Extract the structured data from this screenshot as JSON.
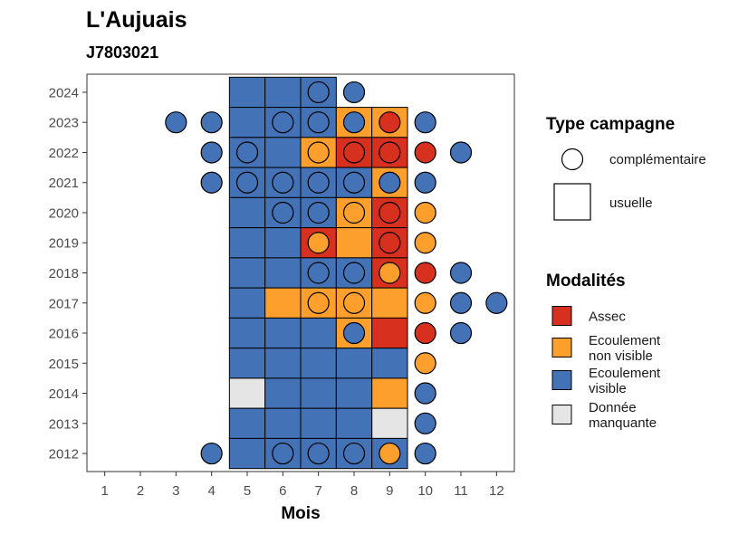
{
  "chart_data": {
    "type": "heatmap",
    "title": "L'Aujuais",
    "subtitle": "J7803021",
    "xlabel": "Mois",
    "ylabel": "",
    "x": [
      1,
      2,
      3,
      4,
      5,
      6,
      7,
      8,
      9,
      10,
      11,
      12
    ],
    "y": [
      2012,
      2013,
      2014,
      2015,
      2016,
      2017,
      2018,
      2019,
      2020,
      2021,
      2022,
      2023,
      2024
    ],
    "xlim": [
      0.5,
      12.5
    ],
    "ylim": [
      2011.4,
      2024.6
    ],
    "grid": false,
    "colors": {
      "Assec": "#d7301f",
      "Ecoulement non visible": "#fd9f2c",
      "Ecoulement visible": "#4372b6",
      "Donnée manquante": "#e5e5e5"
    },
    "legend_type": {
      "title": "Type campagne",
      "items": [
        {
          "key": "complementaire",
          "label": "complémentaire",
          "shape": "circle"
        },
        {
          "key": "usuelle",
          "label": "usuelle",
          "shape": "square"
        }
      ]
    },
    "legend_mod": {
      "title": "Modalités",
      "items": [
        {
          "key": "Assec",
          "label": "Assec",
          "label_lines": [
            "Assec"
          ]
        },
        {
          "key": "Ecoulement non visible",
          "label": "Ecoulement non visible",
          "label_lines": [
            "Ecoulement",
            "non visible"
          ]
        },
        {
          "key": "Ecoulement visible",
          "label": "Ecoulement visible",
          "label_lines": [
            "Ecoulement",
            "visible"
          ]
        },
        {
          "key": "Donnée manquante",
          "label": "Donnée manquante",
          "label_lines": [
            "Donnée",
            "manquante"
          ]
        }
      ]
    },
    "usuelle": [
      {
        "year": 2024,
        "month": 5,
        "m": "Ecoulement visible"
      },
      {
        "year": 2024,
        "month": 6,
        "m": "Ecoulement visible"
      },
      {
        "year": 2024,
        "month": 7,
        "m": "Ecoulement visible"
      },
      {
        "year": 2023,
        "month": 5,
        "m": "Ecoulement visible"
      },
      {
        "year": 2023,
        "month": 6,
        "m": "Ecoulement visible"
      },
      {
        "year": 2023,
        "month": 7,
        "m": "Ecoulement visible"
      },
      {
        "year": 2023,
        "month": 8,
        "m": "Ecoulement non visible"
      },
      {
        "year": 2023,
        "month": 9,
        "m": "Ecoulement non visible"
      },
      {
        "year": 2022,
        "month": 5,
        "m": "Ecoulement visible"
      },
      {
        "year": 2022,
        "month": 6,
        "m": "Ecoulement visible"
      },
      {
        "year": 2022,
        "month": 7,
        "m": "Ecoulement non visible"
      },
      {
        "year": 2022,
        "month": 8,
        "m": "Assec"
      },
      {
        "year": 2022,
        "month": 9,
        "m": "Assec"
      },
      {
        "year": 2021,
        "month": 5,
        "m": "Ecoulement visible"
      },
      {
        "year": 2021,
        "month": 6,
        "m": "Ecoulement visible"
      },
      {
        "year": 2021,
        "month": 7,
        "m": "Ecoulement visible"
      },
      {
        "year": 2021,
        "month": 8,
        "m": "Ecoulement visible"
      },
      {
        "year": 2021,
        "month": 9,
        "m": "Ecoulement non visible"
      },
      {
        "year": 2020,
        "month": 5,
        "m": "Ecoulement visible"
      },
      {
        "year": 2020,
        "month": 6,
        "m": "Ecoulement visible"
      },
      {
        "year": 2020,
        "month": 7,
        "m": "Ecoulement visible"
      },
      {
        "year": 2020,
        "month": 8,
        "m": "Ecoulement non visible"
      },
      {
        "year": 2020,
        "month": 9,
        "m": "Assec"
      },
      {
        "year": 2019,
        "month": 5,
        "m": "Ecoulement visible"
      },
      {
        "year": 2019,
        "month": 6,
        "m": "Ecoulement visible"
      },
      {
        "year": 2019,
        "month": 7,
        "m": "Assec"
      },
      {
        "year": 2019,
        "month": 8,
        "m": "Ecoulement non visible"
      },
      {
        "year": 2019,
        "month": 9,
        "m": "Assec"
      },
      {
        "year": 2018,
        "month": 5,
        "m": "Ecoulement visible"
      },
      {
        "year": 2018,
        "month": 6,
        "m": "Ecoulement visible"
      },
      {
        "year": 2018,
        "month": 7,
        "m": "Ecoulement visible"
      },
      {
        "year": 2018,
        "month": 8,
        "m": "Ecoulement visible"
      },
      {
        "year": 2018,
        "month": 9,
        "m": "Assec"
      },
      {
        "year": 2017,
        "month": 5,
        "m": "Ecoulement visible"
      },
      {
        "year": 2017,
        "month": 6,
        "m": "Ecoulement non visible"
      },
      {
        "year": 2017,
        "month": 7,
        "m": "Ecoulement non visible"
      },
      {
        "year": 2017,
        "month": 8,
        "m": "Ecoulement non visible"
      },
      {
        "year": 2017,
        "month": 9,
        "m": "Ecoulement non visible"
      },
      {
        "year": 2016,
        "month": 5,
        "m": "Ecoulement visible"
      },
      {
        "year": 2016,
        "month": 6,
        "m": "Ecoulement visible"
      },
      {
        "year": 2016,
        "month": 7,
        "m": "Ecoulement visible"
      },
      {
        "year": 2016,
        "month": 8,
        "m": "Ecoulement non visible"
      },
      {
        "year": 2016,
        "month": 9,
        "m": "Assec"
      },
      {
        "year": 2015,
        "month": 5,
        "m": "Ecoulement visible"
      },
      {
        "year": 2015,
        "month": 6,
        "m": "Ecoulement visible"
      },
      {
        "year": 2015,
        "month": 7,
        "m": "Ecoulement visible"
      },
      {
        "year": 2015,
        "month": 8,
        "m": "Ecoulement visible"
      },
      {
        "year": 2015,
        "month": 9,
        "m": "Ecoulement visible"
      },
      {
        "year": 2014,
        "month": 5,
        "m": "Donnée manquante"
      },
      {
        "year": 2014,
        "month": 6,
        "m": "Ecoulement visible"
      },
      {
        "year": 2014,
        "month": 7,
        "m": "Ecoulement visible"
      },
      {
        "year": 2014,
        "month": 8,
        "m": "Ecoulement visible"
      },
      {
        "year": 2014,
        "month": 9,
        "m": "Ecoulement non visible"
      },
      {
        "year": 2013,
        "month": 5,
        "m": "Ecoulement visible"
      },
      {
        "year": 2013,
        "month": 6,
        "m": "Ecoulement visible"
      },
      {
        "year": 2013,
        "month": 7,
        "m": "Ecoulement visible"
      },
      {
        "year": 2013,
        "month": 8,
        "m": "Ecoulement visible"
      },
      {
        "year": 2013,
        "month": 9,
        "m": "Donnée manquante"
      },
      {
        "year": 2012,
        "month": 5,
        "m": "Ecoulement visible"
      },
      {
        "year": 2012,
        "month": 6,
        "m": "Ecoulement visible"
      },
      {
        "year": 2012,
        "month": 7,
        "m": "Ecoulement visible"
      },
      {
        "year": 2012,
        "month": 8,
        "m": "Ecoulement visible"
      },
      {
        "year": 2012,
        "month": 9,
        "m": "Ecoulement visible"
      }
    ],
    "complementaire": [
      {
        "year": 2024,
        "month": 7,
        "m": "Ecoulement visible"
      },
      {
        "year": 2024,
        "month": 8,
        "m": "Ecoulement visible"
      },
      {
        "year": 2023,
        "month": 3,
        "m": "Ecoulement visible"
      },
      {
        "year": 2023,
        "month": 4,
        "m": "Ecoulement visible"
      },
      {
        "year": 2023,
        "month": 6,
        "m": "Ecoulement visible"
      },
      {
        "year": 2023,
        "month": 7,
        "m": "Ecoulement visible"
      },
      {
        "year": 2023,
        "month": 8,
        "m": "Ecoulement visible"
      },
      {
        "year": 2023,
        "month": 9,
        "m": "Assec"
      },
      {
        "year": 2023,
        "month": 10,
        "m": "Ecoulement visible"
      },
      {
        "year": 2022,
        "month": 4,
        "m": "Ecoulement visible"
      },
      {
        "year": 2022,
        "month": 5,
        "m": "Ecoulement visible"
      },
      {
        "year": 2022,
        "month": 7,
        "m": "Ecoulement non visible"
      },
      {
        "year": 2022,
        "month": 8,
        "m": "Assec"
      },
      {
        "year": 2022,
        "month": 9,
        "m": "Assec"
      },
      {
        "year": 2022,
        "month": 10,
        "m": "Assec"
      },
      {
        "year": 2022,
        "month": 11,
        "m": "Ecoulement visible"
      },
      {
        "year": 2021,
        "month": 4,
        "m": "Ecoulement visible"
      },
      {
        "year": 2021,
        "month": 5,
        "m": "Ecoulement visible"
      },
      {
        "year": 2021,
        "month": 6,
        "m": "Ecoulement visible"
      },
      {
        "year": 2021,
        "month": 7,
        "m": "Ecoulement visible"
      },
      {
        "year": 2021,
        "month": 8,
        "m": "Ecoulement visible"
      },
      {
        "year": 2021,
        "month": 9,
        "m": "Ecoulement visible"
      },
      {
        "year": 2021,
        "month": 10,
        "m": "Ecoulement visible"
      },
      {
        "year": 2020,
        "month": 6,
        "m": "Ecoulement visible"
      },
      {
        "year": 2020,
        "month": 7,
        "m": "Ecoulement visible"
      },
      {
        "year": 2020,
        "month": 8,
        "m": "Ecoulement non visible"
      },
      {
        "year": 2020,
        "month": 9,
        "m": "Assec"
      },
      {
        "year": 2020,
        "month": 10,
        "m": "Ecoulement non visible"
      },
      {
        "year": 2019,
        "month": 7,
        "m": "Ecoulement non visible"
      },
      {
        "year": 2019,
        "month": 9,
        "m": "Assec"
      },
      {
        "year": 2019,
        "month": 10,
        "m": "Ecoulement non visible"
      },
      {
        "year": 2018,
        "month": 7,
        "m": "Ecoulement visible"
      },
      {
        "year": 2018,
        "month": 8,
        "m": "Ecoulement visible"
      },
      {
        "year": 2018,
        "month": 9,
        "m": "Ecoulement non visible"
      },
      {
        "year": 2018,
        "month": 10,
        "m": "Assec"
      },
      {
        "year": 2018,
        "month": 11,
        "m": "Ecoulement visible"
      },
      {
        "year": 2017,
        "month": 7,
        "m": "Ecoulement non visible"
      },
      {
        "year": 2017,
        "month": 8,
        "m": "Ecoulement non visible"
      },
      {
        "year": 2017,
        "month": 10,
        "m": "Ecoulement non visible"
      },
      {
        "year": 2017,
        "month": 11,
        "m": "Ecoulement visible"
      },
      {
        "year": 2017,
        "month": 12,
        "m": "Ecoulement visible"
      },
      {
        "year": 2016,
        "month": 8,
        "m": "Ecoulement visible"
      },
      {
        "year": 2016,
        "month": 10,
        "m": "Assec"
      },
      {
        "year": 2016,
        "month": 11,
        "m": "Ecoulement visible"
      },
      {
        "year": 2015,
        "month": 10,
        "m": "Ecoulement non visible"
      },
      {
        "year": 2014,
        "month": 10,
        "m": "Ecoulement visible"
      },
      {
        "year": 2013,
        "month": 10,
        "m": "Ecoulement visible"
      },
      {
        "year": 2012,
        "month": 4,
        "m": "Ecoulement visible"
      },
      {
        "year": 2012,
        "month": 6,
        "m": "Ecoulement visible"
      },
      {
        "year": 2012,
        "month": 7,
        "m": "Ecoulement visible"
      },
      {
        "year": 2012,
        "month": 8,
        "m": "Ecoulement visible"
      },
      {
        "year": 2012,
        "month": 9,
        "m": "Ecoulement non visible"
      },
      {
        "year": 2012,
        "month": 10,
        "m": "Ecoulement visible"
      }
    ]
  }
}
